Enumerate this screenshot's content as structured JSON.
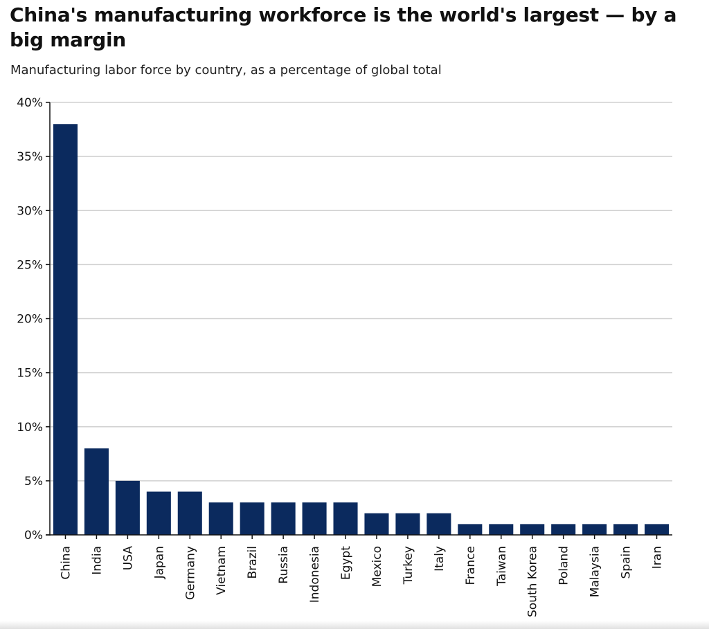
{
  "chart_data": {
    "type": "bar",
    "title": "China's manufacturing workforce is the world's largest — by a big margin",
    "subtitle": "Manufacturing labor force by country, as a percentage of global total",
    "categories": [
      "China",
      "India",
      "USA",
      "Japan",
      "Germany",
      "Vietnam",
      "Brazil",
      "Russia",
      "Indonesia",
      "Egypt",
      "Mexico",
      "Turkey",
      "Italy",
      "France",
      "Taiwan",
      "South Korea",
      "Poland",
      "Malaysia",
      "Spain",
      "Iran"
    ],
    "values": [
      38,
      8,
      5,
      4,
      4,
      3,
      3,
      3,
      3,
      3,
      2,
      2,
      2,
      1,
      1,
      1,
      1,
      1,
      1,
      1
    ],
    "ylim": [
      0,
      40
    ],
    "yticks": [
      0,
      5,
      10,
      15,
      20,
      25,
      30,
      35,
      40
    ],
    "ytick_labels": [
      "0%",
      "5%",
      "10%",
      "15%",
      "20%",
      "25%",
      "30%",
      "35%",
      "40%"
    ],
    "xlabel": "",
    "ylabel": "",
    "grid": true,
    "legend": "none",
    "bar_color": "#0b2a5e"
  }
}
